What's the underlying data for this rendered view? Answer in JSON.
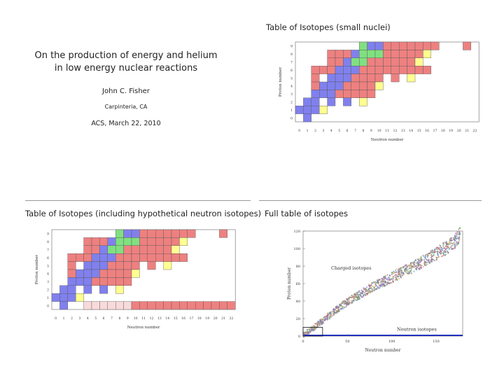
{
  "slide1": {
    "title_line1": "On the production of energy and helium",
    "title_line2": "in low energy nuclear reactions",
    "author": "John C. Fisher",
    "location": "Carpinteria, CA",
    "event": "ACS, March 22, 2010"
  },
  "slide2": {
    "title": "Table of Isotopes (small nuclei)",
    "xlabel": "Neutron number",
    "ylabel": "Proton number",
    "xticks": [
      "0",
      "1",
      "2",
      "3",
      "4",
      "5",
      "6",
      "7",
      "8",
      "9",
      "10",
      "11",
      "12",
      "13",
      "14",
      "15",
      "16",
      "17",
      "18",
      "19",
      "20",
      "21",
      "22"
    ],
    "yticks": [
      "0",
      "1",
      "2",
      "3",
      "4",
      "5",
      "6",
      "7",
      "8",
      "9"
    ]
  },
  "slide3": {
    "title": "Table of Isotopes (including hypothetical neutron isotopes)",
    "xlabel": "Neutron number",
    "ylabel": "Proton number",
    "xticks": [
      "0",
      "1",
      "2",
      "3",
      "4",
      "5",
      "6",
      "7",
      "8",
      "9",
      "10",
      "11",
      "12",
      "13",
      "14",
      "15",
      "16",
      "17",
      "18",
      "19",
      "20",
      "21",
      "22"
    ],
    "yticks": [
      "0",
      "1",
      "2",
      "3",
      "4",
      "5",
      "6",
      "7",
      "8",
      "9"
    ]
  },
  "slide4": {
    "title": "Full table of isotopes",
    "xlabel": "Neutron number",
    "ylabel": "Proton number",
    "xticks": [
      "0",
      "50",
      "100",
      "150"
    ],
    "yticks": [
      "0",
      "20",
      "40",
      "60",
      "80",
      "100",
      "120"
    ],
    "charged_label": "Charged isotopes",
    "neutron_label": "Neutron isotopes"
  },
  "colors": {
    "stable": "#8080ee",
    "stable_light": "#80e080",
    "unstable": "#ee8080",
    "long_lived": "#ffff90",
    "hypothetical": "#f8dada",
    "neutron_line": "#2030c0",
    "divider": "#999999"
  },
  "chart_data": [
    {
      "type": "heatmap",
      "title": "Table of Isotopes (small nuclei)",
      "xlabel": "Neutron number",
      "ylabel": "Proton number",
      "xlim": [
        0,
        22
      ],
      "ylim": [
        0,
        9
      ],
      "rows": [
        {
          "Z": 9,
          "N": [
            8,
            17
          ],
          "gaps": [
            20
          ],
          "extra": [
            21
          ],
          "green": [
            8
          ],
          "yellow": []
        },
        {
          "Z": 8,
          "N": [
            4,
            16
          ],
          "gaps": [],
          "extra": [],
          "green": [
            8,
            9,
            10
          ],
          "yellow": [
            16
          ]
        },
        {
          "Z": 7,
          "N": [
            4,
            15
          ],
          "gaps": [],
          "extra": [],
          "green": [
            7,
            8
          ],
          "yellow": [
            15
          ]
        },
        {
          "Z": 6,
          "N": [
            2,
            16
          ],
          "gaps": [],
          "extra": [],
          "green": [],
          "yellow": []
        },
        {
          "Z": 5,
          "N": [
            2,
            14
          ],
          "gaps": [
            3,
            11,
            13
          ],
          "extra": [],
          "green": [],
          "yellow": [
            14
          ]
        },
        {
          "Z": 4,
          "N": [
            2,
            10
          ],
          "gaps": [],
          "extra": [],
          "green": [],
          "yellow": [
            10
          ]
        },
        {
          "Z": 3,
          "N": [
            2,
            9
          ],
          "gaps": [],
          "extra": [],
          "green": [],
          "yellow": []
        },
        {
          "Z": 2,
          "N": [
            1,
            8
          ],
          "gaps": [
            3,
            5,
            7
          ],
          "extra": [],
          "green": [],
          "yellow": [
            8
          ]
        },
        {
          "Z": 1,
          "N": [
            0,
            3
          ],
          "gaps": [],
          "extra": [],
          "green": [],
          "yellow": [
            3
          ]
        },
        {
          "Z": 0,
          "N": [
            1,
            1
          ],
          "gaps": [],
          "extra": [],
          "green": [],
          "yellow": []
        }
      ]
    },
    {
      "type": "heatmap",
      "title": "Table of Isotopes (including hypothetical neutron isotopes)",
      "xlabel": "Neutron number",
      "ylabel": "Proton number",
      "xlim": [
        0,
        22
      ],
      "ylim": [
        0,
        9
      ],
      "hypothetical_neutron_row": {
        "Z": 0,
        "N": [
          4,
          22
        ]
      }
    },
    {
      "type": "scatter",
      "title": "Full table of isotopes",
      "xlabel": "Neutron number",
      "ylabel": "Proton number",
      "xlim": [
        0,
        180
      ],
      "ylim": [
        0,
        120
      ],
      "series": [
        {
          "name": "Charged isotopes",
          "x": [
            0,
            10,
            20,
            30,
            40,
            50,
            60,
            70,
            80,
            90,
            100,
            110,
            120,
            130,
            140,
            150,
            160,
            170,
            177
          ],
          "y": [
            1,
            8,
            16,
            24,
            32,
            39,
            45,
            51,
            57,
            62,
            67,
            72,
            77,
            82,
            88,
            94,
            100,
            107,
            116
          ]
        },
        {
          "name": "Neutron isotopes",
          "x": [
            0,
            180
          ],
          "y": [
            0,
            0
          ]
        }
      ]
    }
  ]
}
